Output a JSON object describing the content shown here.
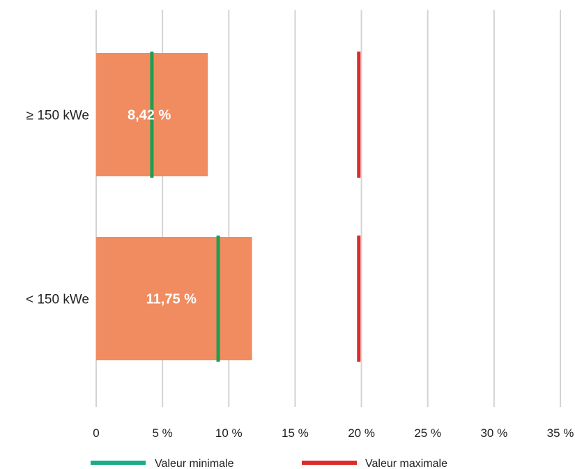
{
  "chart_data": {
    "type": "bar",
    "orientation": "horizontal",
    "categories": [
      "≥ 150 kWe",
      "< 150 kWe"
    ],
    "values": [
      8.42,
      11.75
    ],
    "data_labels": [
      "8,42 %",
      "11,75 %"
    ],
    "min_values": [
      4.2,
      9.2
    ],
    "max_values": [
      19.8,
      19.8
    ],
    "xlim": [
      0,
      35
    ],
    "x_ticks": [
      0,
      5,
      10,
      15,
      20,
      25,
      30,
      35
    ],
    "x_tick_labels": [
      "0",
      "5 %",
      "10 %",
      "15 %",
      "20 %",
      "25 %",
      "30 %",
      "35 %"
    ],
    "grid": "vertical",
    "legend": {
      "placement": "bottom",
      "items": [
        {
          "label": "Valeur minimale",
          "color": "#1aab8a"
        },
        {
          "label": "Valeur maximale",
          "color": "#dd2a2a"
        }
      ]
    },
    "colors": {
      "bar": "#f08c60",
      "min_marker": "#1e9e52",
      "max_marker": "#dd2a2a",
      "grid": "#d3d3d3"
    }
  }
}
